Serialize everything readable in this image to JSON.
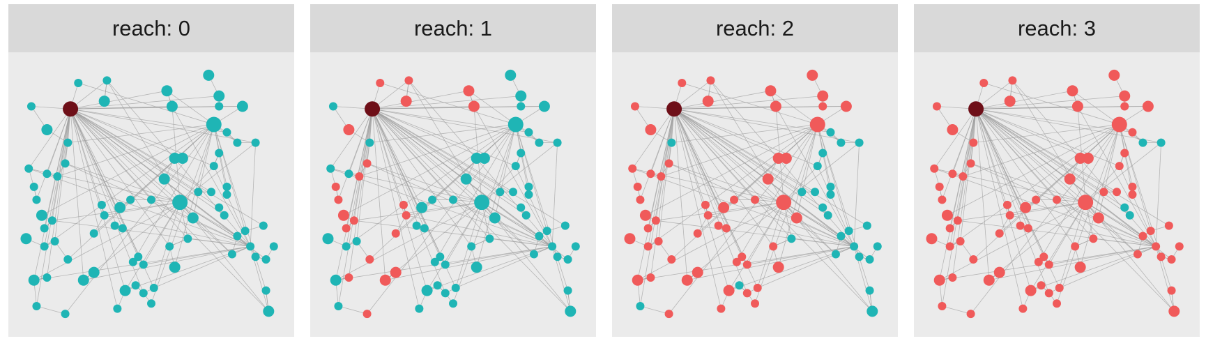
{
  "chart_data": {
    "type": "network",
    "panel_prefix": "reach: ",
    "panels": [
      0,
      1,
      2,
      3
    ],
    "colors": {
      "not_reached": "#1fb5b5",
      "reached": "#f05a5a",
      "seed": "#6e0f18",
      "edge": "#9e9e9e"
    },
    "seed_node": 0,
    "reach_values": [
      0,
      1,
      1,
      1,
      2,
      3,
      2,
      1,
      2,
      1,
      1,
      1,
      1,
      1,
      1,
      1,
      2,
      1,
      1,
      1,
      2,
      1,
      2,
      2,
      1,
      2,
      1,
      1,
      3,
      1,
      2,
      3,
      2,
      2,
      2,
      2,
      2,
      2,
      2,
      2,
      2,
      2,
      2,
      2,
      2,
      2,
      3,
      3,
      3,
      3,
      3,
      3,
      3,
      3,
      3,
      4,
      4,
      3,
      3,
      3,
      3,
      4,
      4,
      2,
      2,
      1,
      1,
      2,
      2,
      2,
      2,
      2,
      2,
      2,
      3,
      3,
      3,
      3,
      3
    ],
    "degree_class": [
      3,
      1,
      1,
      2,
      1,
      1,
      1,
      2,
      1,
      1,
      1,
      1,
      1,
      2,
      1,
      1,
      1,
      1,
      1,
      1,
      2,
      1,
      2,
      2,
      1,
      1,
      2,
      2,
      1,
      1,
      2,
      1,
      1,
      1,
      1,
      1,
      1,
      1,
      1,
      1,
      1,
      1,
      1,
      3,
      1,
      2,
      1,
      1,
      1,
      1,
      2,
      1,
      1,
      1,
      1,
      1,
      1,
      1,
      1,
      1,
      1,
      1,
      1,
      2,
      2,
      2,
      2,
      2,
      2,
      2,
      3,
      2,
      1,
      2,
      1,
      1,
      1,
      1,
      1
    ],
    "node_layout_units": [
      [
        0.19,
        0.17
      ],
      [
        0.22,
        0.07
      ],
      [
        0.33,
        0.06
      ],
      [
        0.32,
        0.14
      ],
      [
        0.04,
        0.16
      ],
      [
        0.18,
        0.3
      ],
      [
        0.03,
        0.4
      ],
      [
        0.1,
        0.25
      ],
      [
        0.1,
        0.42
      ],
      [
        0.14,
        0.43
      ],
      [
        0.17,
        0.38
      ],
      [
        0.05,
        0.47
      ],
      [
        0.06,
        0.52
      ],
      [
        0.08,
        0.58
      ],
      [
        0.12,
        0.6
      ],
      [
        0.09,
        0.63
      ],
      [
        0.13,
        0.68
      ],
      [
        0.28,
        0.65
      ],
      [
        0.32,
        0.58
      ],
      [
        0.31,
        0.54
      ],
      [
        0.38,
        0.55
      ],
      [
        0.18,
        0.75
      ],
      [
        0.05,
        0.83
      ],
      [
        0.02,
        0.67
      ],
      [
        0.1,
        0.82
      ],
      [
        0.09,
        0.7
      ],
      [
        0.24,
        0.83
      ],
      [
        0.28,
        0.8
      ],
      [
        0.06,
        0.93
      ],
      [
        0.17,
        0.96
      ],
      [
        0.4,
        0.87
      ],
      [
        0.44,
        0.85
      ],
      [
        0.47,
        0.88
      ],
      [
        0.5,
        0.92
      ],
      [
        0.51,
        0.86
      ],
      [
        0.37,
        0.94
      ],
      [
        0.45,
        0.74
      ],
      [
        0.43,
        0.76
      ],
      [
        0.47,
        0.77
      ],
      [
        0.36,
        0.62
      ],
      [
        0.39,
        0.63
      ],
      [
        0.42,
        0.52
      ],
      [
        0.5,
        0.52
      ],
      [
        0.74,
        0.23
      ],
      [
        0.76,
        0.16
      ],
      [
        0.85,
        0.16
      ],
      [
        0.88,
        0.7
      ],
      [
        0.9,
        0.74
      ],
      [
        0.94,
        0.75
      ],
      [
        0.94,
        0.87
      ],
      [
        0.95,
        0.95
      ],
      [
        0.97,
        0.7
      ],
      [
        0.93,
        0.62
      ],
      [
        0.86,
        0.64
      ],
      [
        0.83,
        0.66
      ],
      [
        0.76,
        0.55
      ],
      [
        0.78,
        0.58
      ],
      [
        0.79,
        0.5
      ],
      [
        0.74,
        0.39
      ],
      [
        0.76,
        0.34
      ],
      [
        0.79,
        0.26
      ],
      [
        0.83,
        0.3
      ],
      [
        0.9,
        0.3
      ],
      [
        0.72,
        0.04
      ],
      [
        0.76,
        0.12
      ],
      [
        0.56,
        0.1
      ],
      [
        0.58,
        0.16
      ],
      [
        0.59,
        0.36
      ],
      [
        0.62,
        0.36
      ],
      [
        0.66,
        0.59
      ],
      [
        0.61,
        0.53
      ],
      [
        0.55,
        0.44
      ],
      [
        0.57,
        0.7
      ],
      [
        0.59,
        0.78
      ],
      [
        0.64,
        0.67
      ],
      [
        0.68,
        0.49
      ],
      [
        0.73,
        0.49
      ],
      [
        0.79,
        0.47
      ],
      [
        0.81,
        0.73
      ]
    ]
  }
}
